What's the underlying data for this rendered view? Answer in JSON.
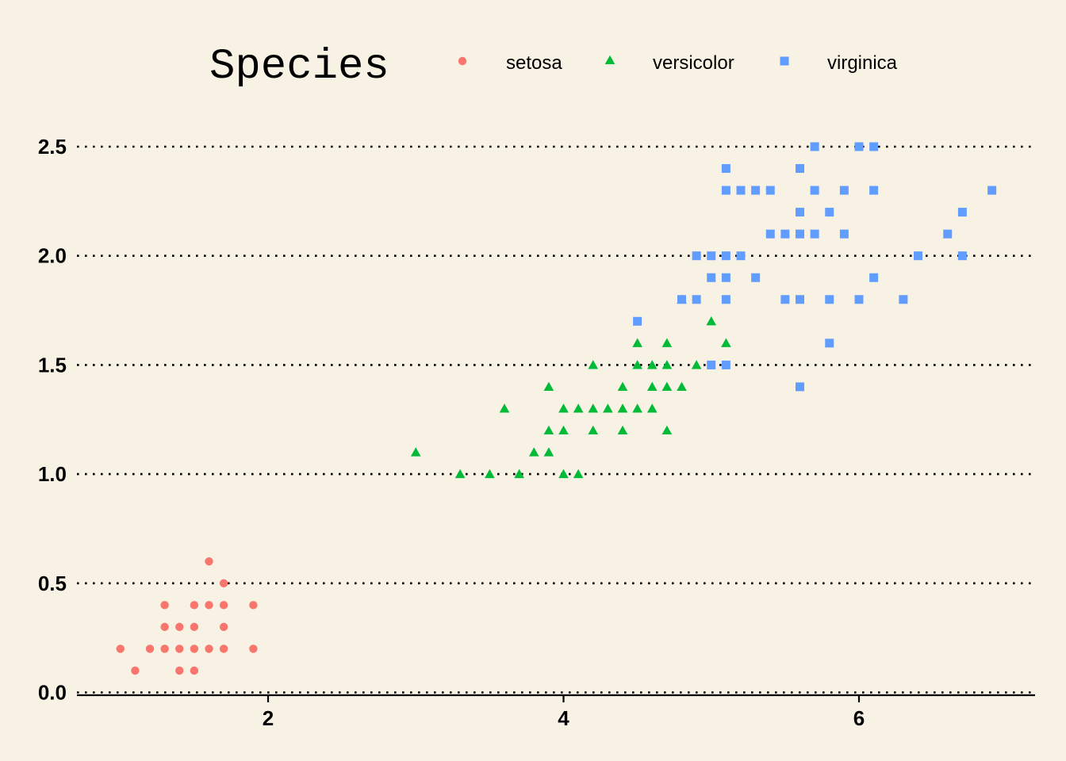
{
  "chart_data": {
    "type": "scatter",
    "title": "",
    "xlabel": "",
    "ylabel": "",
    "xlim": [
      0.7,
      7.2
    ],
    "ylim": [
      0,
      2.5
    ],
    "x_ticks": [
      2,
      4,
      6
    ],
    "y_ticks": [
      0.0,
      0.5,
      1.0,
      1.5,
      2.0,
      2.5
    ],
    "x_tick_labels": [
      "2",
      "4",
      "6"
    ],
    "y_tick_labels": [
      "0.0",
      "0.5",
      "1.0",
      "1.5",
      "2.0",
      "2.5"
    ],
    "grid": "horizontal dotted",
    "legend": {
      "title": "Species",
      "placement": "top"
    },
    "series": [
      {
        "name": "setosa",
        "marker": "circle",
        "color": "#f8766d",
        "points": [
          [
            1.0,
            0.2
          ],
          [
            1.1,
            0.1
          ],
          [
            1.2,
            0.2
          ],
          [
            1.3,
            0.2
          ],
          [
            1.3,
            0.3
          ],
          [
            1.3,
            0.4
          ],
          [
            1.4,
            0.1
          ],
          [
            1.4,
            0.2
          ],
          [
            1.4,
            0.3
          ],
          [
            1.5,
            0.1
          ],
          [
            1.5,
            0.2
          ],
          [
            1.5,
            0.3
          ],
          [
            1.5,
            0.4
          ],
          [
            1.6,
            0.2
          ],
          [
            1.6,
            0.4
          ],
          [
            1.6,
            0.6
          ],
          [
            1.7,
            0.2
          ],
          [
            1.7,
            0.3
          ],
          [
            1.7,
            0.4
          ],
          [
            1.7,
            0.5
          ],
          [
            1.9,
            0.2
          ],
          [
            1.9,
            0.4
          ]
        ]
      },
      {
        "name": "versicolor",
        "marker": "triangle",
        "color": "#00ba38",
        "points": [
          [
            3.0,
            1.1
          ],
          [
            3.3,
            1.0
          ],
          [
            3.5,
            1.0
          ],
          [
            3.6,
            1.3
          ],
          [
            3.7,
            1.0
          ],
          [
            3.8,
            1.1
          ],
          [
            3.9,
            1.1
          ],
          [
            3.9,
            1.2
          ],
          [
            3.9,
            1.4
          ],
          [
            4.0,
            1.0
          ],
          [
            4.0,
            1.2
          ],
          [
            4.0,
            1.3
          ],
          [
            4.1,
            1.0
          ],
          [
            4.1,
            1.3
          ],
          [
            4.2,
            1.2
          ],
          [
            4.2,
            1.3
          ],
          [
            4.2,
            1.5
          ],
          [
            4.3,
            1.3
          ],
          [
            4.4,
            1.2
          ],
          [
            4.4,
            1.3
          ],
          [
            4.4,
            1.4
          ],
          [
            4.5,
            1.3
          ],
          [
            4.5,
            1.5
          ],
          [
            4.5,
            1.6
          ],
          [
            4.6,
            1.3
          ],
          [
            4.6,
            1.4
          ],
          [
            4.6,
            1.5
          ],
          [
            4.7,
            1.2
          ],
          [
            4.7,
            1.4
          ],
          [
            4.7,
            1.5
          ],
          [
            4.7,
            1.6
          ],
          [
            4.8,
            1.4
          ],
          [
            4.8,
            1.8
          ],
          [
            4.9,
            1.5
          ],
          [
            5.0,
            1.7
          ],
          [
            5.1,
            1.6
          ]
        ]
      },
      {
        "name": "virginica",
        "marker": "square",
        "color": "#619cff",
        "points": [
          [
            4.5,
            1.7
          ],
          [
            4.8,
            1.8
          ],
          [
            4.9,
            1.8
          ],
          [
            4.9,
            2.0
          ],
          [
            5.0,
            1.5
          ],
          [
            5.0,
            1.9
          ],
          [
            5.0,
            2.0
          ],
          [
            5.1,
            1.5
          ],
          [
            5.1,
            1.8
          ],
          [
            5.1,
            1.9
          ],
          [
            5.1,
            2.0
          ],
          [
            5.1,
            2.3
          ],
          [
            5.1,
            2.4
          ],
          [
            5.2,
            2.0
          ],
          [
            5.2,
            2.3
          ],
          [
            5.3,
            1.9
          ],
          [
            5.3,
            2.3
          ],
          [
            5.4,
            2.1
          ],
          [
            5.4,
            2.3
          ],
          [
            5.5,
            1.8
          ],
          [
            5.5,
            2.1
          ],
          [
            5.6,
            1.4
          ],
          [
            5.6,
            1.8
          ],
          [
            5.6,
            2.1
          ],
          [
            5.6,
            2.2
          ],
          [
            5.6,
            2.4
          ],
          [
            5.7,
            2.1
          ],
          [
            5.7,
            2.3
          ],
          [
            5.7,
            2.5
          ],
          [
            5.8,
            1.6
          ],
          [
            5.8,
            1.8
          ],
          [
            5.8,
            2.2
          ],
          [
            5.9,
            2.1
          ],
          [
            5.9,
            2.3
          ],
          [
            6.0,
            1.8
          ],
          [
            6.0,
            2.5
          ],
          [
            6.1,
            1.9
          ],
          [
            6.1,
            2.3
          ],
          [
            6.1,
            2.5
          ],
          [
            6.3,
            1.8
          ],
          [
            6.4,
            2.0
          ],
          [
            6.6,
            2.1
          ],
          [
            6.7,
            2.0
          ],
          [
            6.7,
            2.2
          ],
          [
            6.9,
            2.3
          ]
        ]
      }
    ]
  }
}
